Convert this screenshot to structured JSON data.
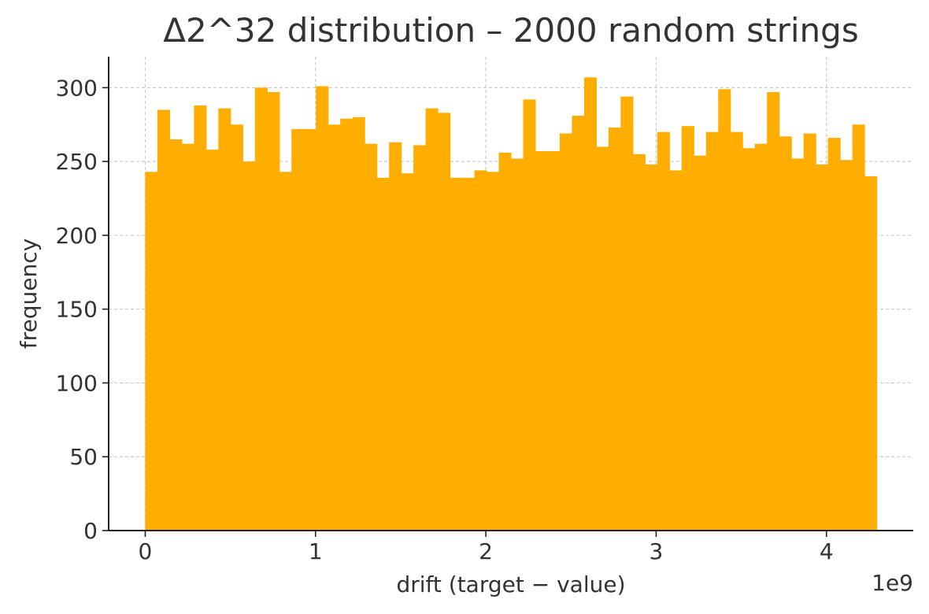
{
  "chart_data": {
    "type": "bar",
    "title": "Δ2^32 distribution – 2000 random strings",
    "xlabel": "drift (target − value)",
    "ylabel": "frequency",
    "x_offset_label": "1e9",
    "bar_color": "#FFAE00",
    "grid_color": "#cccccc",
    "grid": true,
    "xlim": [
      -0.2147,
      4.5097
    ],
    "ylim": [
      0,
      321
    ],
    "x_range": [
      0,
      4.294967296
    ],
    "xticks": [
      0,
      1,
      2,
      3,
      4
    ],
    "xtick_labels": [
      "0",
      "1",
      "2",
      "3",
      "4"
    ],
    "yticks": [
      0,
      50,
      100,
      150,
      200,
      250,
      300
    ],
    "ytick_labels": [
      "0",
      "50",
      "100",
      "150",
      "200",
      "250",
      "300"
    ],
    "bins": 60,
    "values": [
      243,
      285,
      265,
      262,
      288,
      258,
      286,
      275,
      250,
      300,
      297,
      243,
      272,
      272,
      301,
      275,
      279,
      280,
      262,
      239,
      263,
      242,
      261,
      286,
      283,
      239,
      239,
      244,
      243,
      256,
      252,
      292,
      257,
      257,
      269,
      281,
      307,
      260,
      273,
      294,
      255,
      248,
      270,
      244,
      274,
      254,
      270,
      299,
      270,
      259,
      262,
      297,
      267,
      252,
      269,
      248,
      266,
      251,
      275,
      240
    ]
  }
}
